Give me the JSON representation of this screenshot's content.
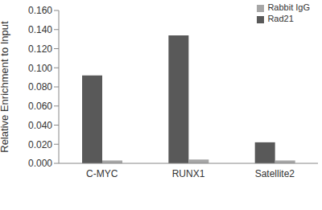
{
  "chart_data": {
    "type": "bar",
    "y_label": "Relative Enrichment to Input",
    "categories": [
      "C-MYC",
      "RUNX1",
      "Satellite2"
    ],
    "series": [
      {
        "name": "Rad21",
        "color": "#595959",
        "values": [
          0.092,
          0.134,
          0.022
        ]
      },
      {
        "name": "Rabbit IgG",
        "color": "#a6a6a6",
        "values": [
          0.003,
          0.004,
          0.003
        ]
      }
    ],
    "ylim": [
      0,
      0.16
    ],
    "yticks": [
      {
        "value": 0,
        "label": "0.000"
      },
      {
        "value": 0.02,
        "label": "0.020"
      },
      {
        "value": 0.04,
        "label": "0.040"
      },
      {
        "value": 0.06,
        "label": "0.060"
      },
      {
        "value": 0.08,
        "label": "0.080"
      },
      {
        "value": 0.1,
        "label": "0.100"
      },
      {
        "value": 0.12,
        "label": "0.120"
      },
      {
        "value": 0.14,
        "label": "0.140"
      },
      {
        "value": 0.16,
        "label": "0.160"
      }
    ],
    "grid": false,
    "legend": "top-right"
  }
}
